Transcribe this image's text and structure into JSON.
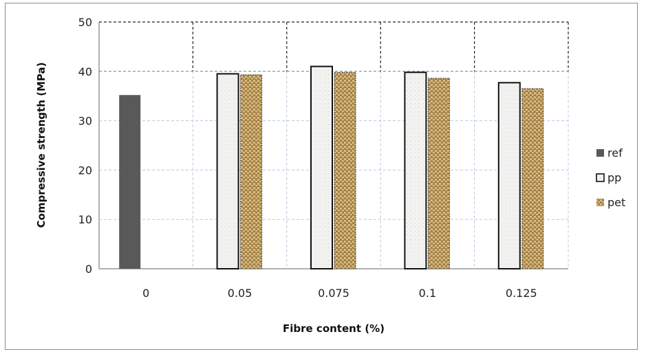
{
  "chart_data": {
    "type": "bar",
    "title": "",
    "xlabel": "Fibre content (%)",
    "ylabel": "Compressive strength (MPa)",
    "ylim": [
      0,
      50
    ],
    "yticks": [
      "0",
      "10",
      "20",
      "30",
      "40",
      "50"
    ],
    "categories": [
      "0",
      "0.05",
      "0.075",
      "0.1",
      "0.125"
    ],
    "series": [
      {
        "name": "ref",
        "values": [
          35.2,
          null,
          null,
          null,
          null
        ],
        "color": "#595959"
      },
      {
        "name": "pp",
        "values": [
          null,
          39.5,
          41.0,
          39.8,
          37.7
        ],
        "color": "#f2f2f0"
      },
      {
        "name": "pet",
        "values": [
          null,
          39.3,
          39.8,
          38.6,
          36.5
        ],
        "color": "#c8a86a"
      }
    ],
    "grid": true,
    "legend": "right"
  }
}
